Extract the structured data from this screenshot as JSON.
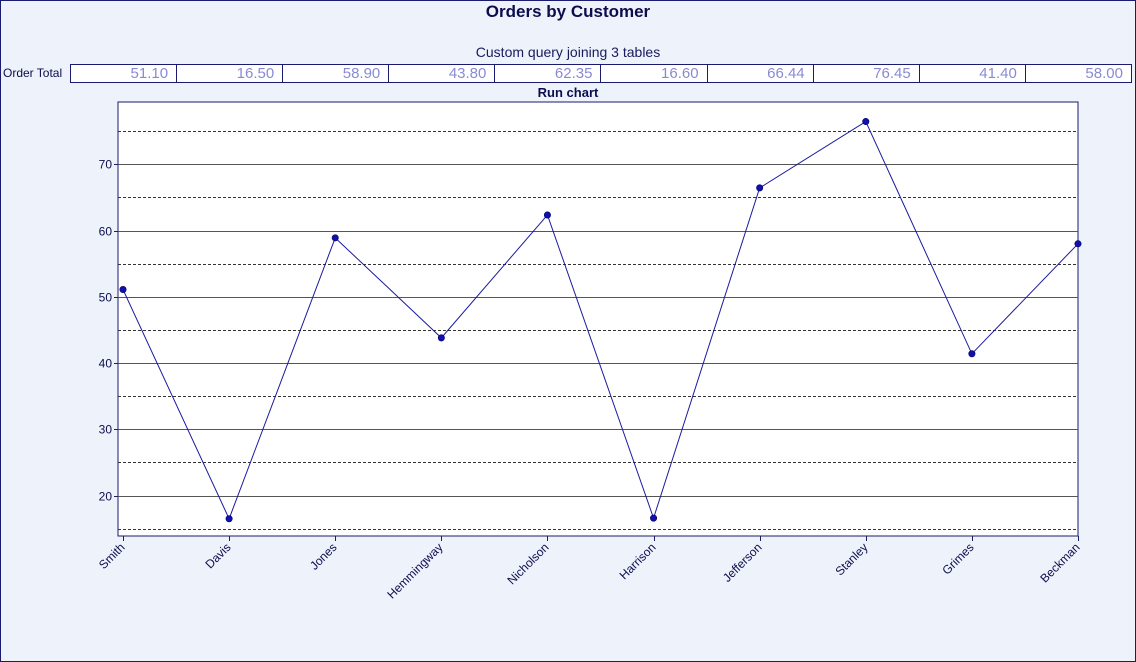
{
  "title": "Orders by Customer",
  "subtitle": "Custom query joining 3 tables",
  "table": {
    "row_label": "Order Total",
    "values": [
      "51.10",
      "16.50",
      "58.90",
      "43.80",
      "62.35",
      "16.60",
      "66.44",
      "76.45",
      "41.40",
      "58.00"
    ]
  },
  "chart_data": {
    "type": "line",
    "title": "Run chart",
    "categories": [
      "Smith",
      "Davis",
      "Jones",
      "Hemmingway",
      "Nicholson",
      "Harrison",
      "Jefferson",
      "Stanley",
      "Grimes",
      "Beckman"
    ],
    "series": [
      {
        "values": [
          51.1,
          16.5,
          58.9,
          43.8,
          62.35,
          16.6,
          66.44,
          76.45,
          41.4,
          58.0
        ]
      }
    ],
    "y_ticks": [
      20,
      30,
      40,
      50,
      60,
      70
    ],
    "y_dashed_lines": [
      15,
      25,
      35,
      45,
      55,
      65,
      75
    ],
    "ylim": [
      13.9,
      79.4
    ],
    "grid": true,
    "colors": {
      "line": "#1a1aa0",
      "marker": "#1010b0",
      "frame": "#1a1a6e",
      "text": "#0d0d4d"
    }
  }
}
